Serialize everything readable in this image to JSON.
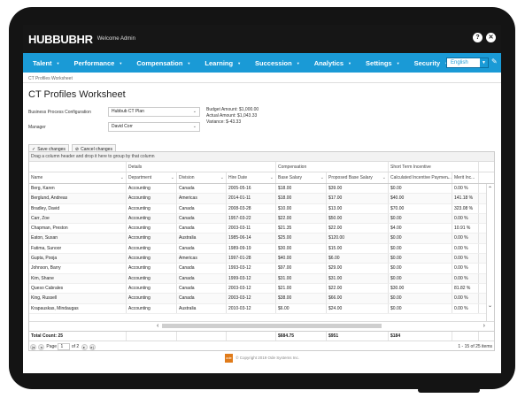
{
  "app": {
    "logo": "HUBBUBHR",
    "welcome": "Welcome Admin",
    "help_icon": "?",
    "close_icon": "✕"
  },
  "nav": {
    "items": [
      {
        "label": "Talent"
      },
      {
        "label": "Performance"
      },
      {
        "label": "Compensation"
      },
      {
        "label": "Learning"
      },
      {
        "label": "Succession"
      },
      {
        "label": "Analytics"
      },
      {
        "label": "Settings"
      },
      {
        "label": "Security"
      }
    ],
    "language": "English",
    "accent": "#1a9ad6"
  },
  "breadcrumb": "CT Profiles Worksheet",
  "page_title": "CT Profiles Worksheet",
  "form": {
    "bpc_label": "Business Process Configuration",
    "bpc_value": "Hubbub CT Plan",
    "manager_label": "Manager",
    "manager_value": "David Corr",
    "budget_amount": "Budget Amount: $1,000.00",
    "actual_amount": "Actual Amount: $1,043.33",
    "variance": "Variance: $-43.33"
  },
  "toolbar": {
    "save_label": "Save changes",
    "cancel_label": "Cancel changes"
  },
  "grid": {
    "group_hint": "Drag a column header and drop it here to group by that column",
    "groups": {
      "details": "Details",
      "compensation": "Compensation",
      "sti": "Short Term Incentive"
    },
    "columns": [
      "Name",
      "Department",
      "Division",
      "Hire Date",
      "Base Salary",
      "Proposed Base Salary",
      "Calculated Incentive Paymen...",
      "Merit Inc..."
    ],
    "rows": [
      [
        "Berg, Karen",
        "Accounting",
        "Canada",
        "2005-05-16",
        "$18.00",
        "$39.00",
        "$0.00",
        "0.00 %"
      ],
      [
        "Berglund, Andreas",
        "Accounting",
        "Americas",
        "2014-01-11",
        "$18.00",
        "$17.00",
        "$40.00",
        "141.18 %"
      ],
      [
        "Bradley, David",
        "Accounting",
        "Canada",
        "2008-03-28",
        "$10.00",
        "$13.00",
        "$70.00",
        "323.08 %"
      ],
      [
        "Carr, Zoe",
        "Accounting",
        "Canada",
        "1957-03-22",
        "$22.00",
        "$50.00",
        "$0.00",
        "0.00 %"
      ],
      [
        "Chapman, Preston",
        "Accounting",
        "Canada",
        "2003-03-11",
        "$21.35",
        "$22.00",
        "$4.00",
        "10.91 %"
      ],
      [
        "Eaton, Susan",
        "Accounting",
        "Australia",
        "1985-06-14",
        "$25.00",
        "$120.00",
        "$0.00",
        "0.00 %"
      ],
      [
        "Fatima, Sunoor",
        "Accounting",
        "Canada",
        "1989-09-19",
        "$30.00",
        "$15.00",
        "$0.00",
        "0.00 %"
      ],
      [
        "Gupta, Pooja",
        "Accounting",
        "Americas",
        "1997-01-28",
        "$40.00",
        "$6.00",
        "$0.00",
        "0.00 %"
      ],
      [
        "Johnson, Barry",
        "Accounting",
        "Canada",
        "1993-03-12",
        "$97.00",
        "$29.00",
        "$0.00",
        "0.00 %"
      ],
      [
        "Kim, Shane",
        "Accounting",
        "Canada",
        "1999-03-12",
        "$31.00",
        "$31.00",
        "$0.00",
        "0.00 %"
      ],
      [
        "Queso Cabrales",
        "Accounting",
        "Canada",
        "2003-03-12",
        "$21.00",
        "$22.00",
        "$30.00",
        "81.82 %"
      ],
      [
        "King, Russell",
        "Accounting",
        "Canada",
        "2003-03-12",
        "$38.00",
        "$66.00",
        "$0.00",
        "0.00 %"
      ],
      [
        "Krapauskas, Mindaugas",
        "Accounting",
        "Australia",
        "2010-03-12",
        "$6.00",
        "$24.00",
        "$0.00",
        "0.00 %"
      ]
    ],
    "footer": [
      "Total Count: 25",
      "",
      "",
      "",
      "$684.75",
      "$951",
      "$184",
      ""
    ],
    "pager": {
      "page_label": "Page",
      "page_value": "1",
      "of_label": "of 2",
      "count_text": "1 - 15 of 25 items"
    }
  },
  "copyright": "© Copyright 2019 Ode Systems Inc.",
  "ode_badge": "ode"
}
